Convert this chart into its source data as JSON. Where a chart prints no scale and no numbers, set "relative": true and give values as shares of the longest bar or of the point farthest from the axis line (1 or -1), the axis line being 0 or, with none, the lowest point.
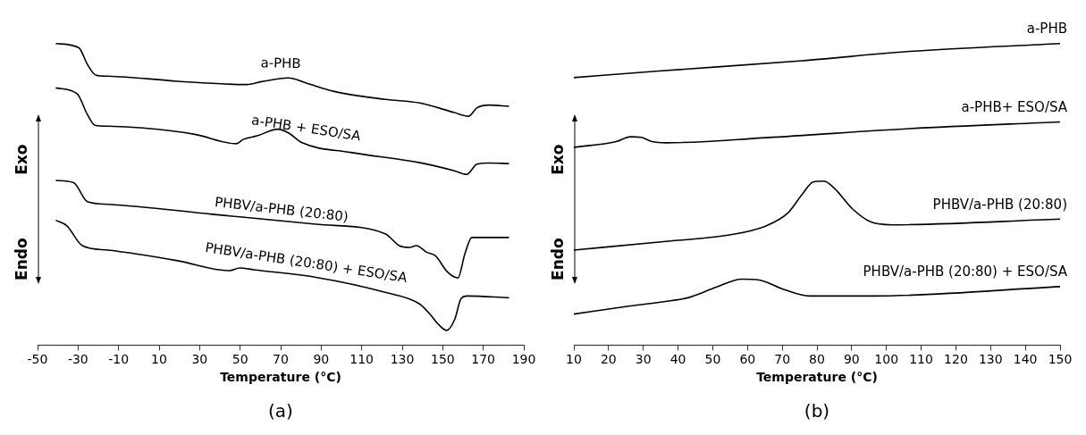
{
  "chart_data": [
    {
      "type": "line",
      "title": "(a)",
      "xlabel": "Temperature (°C)",
      "relative": true,
      "legend": false,
      "grid": false,
      "marker": "none",
      "line_style": "solid",
      "annotations": [
        "Exo",
        "Endo"
      ],
      "xlim": [
        -50,
        190
      ],
      "xticks": [
        -50,
        -30,
        -10,
        10,
        30,
        50,
        70,
        90,
        110,
        130,
        150,
        170,
        190
      ],
      "series": [
        {
          "name": "a-PHB",
          "color": "#000000",
          "x": [
            -41,
            -29.6,
            -25.4,
            -21.1,
            -15.1,
            19.1,
            53.3,
            60.1,
            73.8,
            82.3,
            96,
            121.6,
            138.7,
            155.8,
            162.7,
            166.9,
            172.9,
            182.7
          ],
          "values": [
            1.0,
            0.986,
            0.931,
            0.895,
            0.892,
            0.875,
            0.864,
            0.873,
            0.886,
            0.87,
            0.842,
            0.815,
            0.803,
            0.771,
            0.759,
            0.787,
            0.796,
            0.792
          ]
        },
        {
          "name": "a-PHB + ESO/SA",
          "color": "#000000",
          "x": [
            -41,
            -30.5,
            -25.4,
            -21.6,
            -15.1,
            2,
            27.6,
            48.1,
            51.5,
            58.4,
            68.6,
            73.8,
            80.6,
            104.5,
            138.7,
            155.8,
            161.8,
            166.9,
            172.9,
            182.7
          ],
          "values": [
            0.853,
            0.834,
            0.765,
            0.729,
            0.726,
            0.72,
            0.699,
            0.668,
            0.682,
            0.694,
            0.716,
            0.704,
            0.671,
            0.639,
            0.605,
            0.578,
            0.566,
            0.6,
            0.604,
            0.602
          ]
        },
        {
          "name": "PHBV/a-PHB (20:80)",
          "color": "#000000",
          "x": [
            -41,
            -32.2,
            -25.4,
            -15.1,
            36.2,
            87.4,
            121.6,
            128.5,
            133.6,
            137,
            142.1,
            146.4,
            152.4,
            157.5,
            160.9,
            164.4,
            182.7
          ],
          "values": [
            0.546,
            0.539,
            0.476,
            0.467,
            0.434,
            0.401,
            0.369,
            0.33,
            0.324,
            0.33,
            0.308,
            0.296,
            0.242,
            0.223,
            0.302,
            0.357,
            0.357
          ]
        },
        {
          "name": "PHBV/a-PHB (20:80) + ESO/SA",
          "color": "#000000",
          "x": [
            -41,
            -35.6,
            -27.9,
            -15.1,
            19.1,
            44.7,
            49.8,
            56.7,
            87.4,
            121.6,
            138.7,
            143.9,
            148,
            152,
            156,
            159,
            162,
            182.7
          ],
          "values": [
            0.414,
            0.396,
            0.33,
            0.315,
            0.28,
            0.247,
            0.256,
            0.25,
            0.225,
            0.175,
            0.136,
            0.101,
            0.068,
            0.049,
            0.087,
            0.154,
            0.163,
            0.157
          ]
        }
      ]
    },
    {
      "type": "line",
      "title": "(b)",
      "xlabel": "Temperature (°C)",
      "relative": true,
      "legend": false,
      "grid": false,
      "marker": "none",
      "line_style": "solid",
      "annotations": [
        "Exo",
        "Endo"
      ],
      "xlim": [
        10,
        150
      ],
      "xticks": [
        10,
        20,
        30,
        40,
        50,
        60,
        70,
        80,
        90,
        100,
        110,
        120,
        130,
        140,
        150
      ],
      "series": [
        {
          "name": "a-PHB",
          "color": "#000000",
          "x": [
            10,
            34.5,
            75.8,
            106.7,
            150
          ],
          "values": [
            0.887,
            0.909,
            0.943,
            0.974,
            1.0
          ]
        },
        {
          "name": "a-PHB+ ESO/SA",
          "color": "#000000",
          "x": [
            10,
            22.2,
            26.3,
            29.4,
            32.5,
            36.6,
            65.5,
            106.7,
            150
          ],
          "values": [
            0.656,
            0.675,
            0.691,
            0.689,
            0.675,
            0.671,
            0.688,
            0.718,
            0.74
          ]
        },
        {
          "name": "PHBV/a-PHB (20:80)",
          "color": "#000000",
          "x": [
            10,
            34.5,
            55.2,
            65.5,
            71.7,
            75.8,
            78.9,
            82,
            85.1,
            90.2,
            95.4,
            101.6,
            150
          ],
          "values": [
            0.315,
            0.342,
            0.366,
            0.396,
            0.439,
            0.501,
            0.541,
            0.544,
            0.519,
            0.452,
            0.409,
            0.399,
            0.418
          ]
        },
        {
          "name": "PHBV/a-PHB (20:80) + ESO/SA",
          "color": "#000000",
          "x": [
            10,
            26.3,
            34.5,
            42.8,
            51,
            58.3,
            63.4,
            70.6,
            77.8,
            96.4,
            150
          ],
          "values": [
            0.103,
            0.13,
            0.142,
            0.157,
            0.192,
            0.219,
            0.216,
            0.184,
            0.163,
            0.163,
            0.194
          ]
        }
      ]
    }
  ]
}
